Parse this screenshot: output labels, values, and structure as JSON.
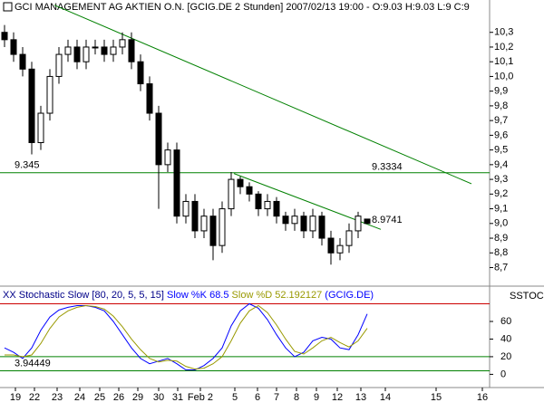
{
  "chart_data": [
    {
      "type": "candlestick",
      "title": "GCI MANAGEMENT AG AKTIEN O.N. [GCIG.DE  2 Stunden] 2007/02/13 19:00 - O:9.03 H:9.03 L:9 C:9",
      "x": [
        1,
        3,
        5,
        7,
        9,
        11,
        13,
        15,
        17,
        19,
        21,
        23,
        25,
        27,
        29,
        31,
        33,
        35,
        37,
        39,
        41,
        43,
        45,
        47,
        49,
        51,
        53,
        55,
        57,
        59,
        61,
        63,
        65,
        67,
        69,
        71,
        73,
        75,
        77,
        79,
        81
      ],
      "open": [
        10.3,
        10.25,
        10.15,
        10.05,
        9.55,
        9.75,
        10.0,
        10.15,
        10.2,
        10.1,
        10.2,
        10.2,
        10.15,
        10.2,
        10.25,
        10.1,
        9.95,
        9.75,
        9.4,
        9.5,
        9.05,
        9.15,
        8.95,
        9.05,
        8.85,
        9.1,
        9.3,
        9.25,
        9.2,
        9.1,
        9.15,
        9.05,
        9.0,
        9.05,
        8.95,
        9.05,
        8.9,
        8.8,
        8.85,
        8.95,
        9.03
      ],
      "high": [
        10.35,
        10.3,
        10.2,
        10.1,
        9.8,
        10.05,
        10.2,
        10.25,
        10.25,
        10.25,
        10.25,
        10.25,
        10.25,
        10.3,
        10.3,
        10.15,
        10.0,
        9.8,
        9.55,
        9.55,
        9.2,
        9.2,
        9.1,
        9.1,
        9.15,
        9.35,
        9.32,
        9.28,
        9.22,
        9.2,
        9.18,
        9.08,
        9.1,
        9.08,
        9.1,
        9.08,
        8.95,
        8.9,
        9.0,
        9.08,
        9.03
      ],
      "low": [
        10.2,
        10.1,
        10.0,
        9.47,
        9.5,
        9.7,
        9.95,
        10.1,
        10.05,
        10.05,
        10.15,
        10.1,
        10.1,
        10.15,
        10.05,
        9.9,
        9.7,
        9.1,
        9.35,
        9.0,
        9.0,
        8.9,
        8.9,
        8.75,
        8.8,
        9.05,
        9.2,
        9.15,
        9.05,
        9.05,
        9.0,
        8.95,
        8.95,
        8.9,
        8.9,
        8.85,
        8.72,
        8.75,
        8.8,
        8.9,
        9.0
      ],
      "close": [
        10.25,
        10.15,
        10.05,
        9.55,
        9.75,
        10.0,
        10.15,
        10.2,
        10.1,
        10.2,
        10.2,
        10.15,
        10.2,
        10.25,
        10.1,
        9.95,
        9.75,
        9.4,
        9.5,
        9.05,
        9.15,
        8.95,
        9.05,
        8.85,
        9.1,
        9.3,
        9.25,
        9.2,
        9.1,
        9.15,
        9.05,
        9.0,
        9.05,
        8.95,
        9.05,
        8.9,
        8.8,
        8.85,
        8.95,
        9.05,
        9.0
      ],
      "xlim": [
        0,
        108
      ],
      "xticks": [
        {
          "value": 3.4,
          "label": "19"
        },
        {
          "value": 7.6,
          "label": "22"
        },
        {
          "value": 12.6,
          "label": "23"
        },
        {
          "value": 17.6,
          "label": "24"
        },
        {
          "value": 22,
          "label": "25"
        },
        {
          "value": 26.2,
          "label": "26"
        },
        {
          "value": 30.4,
          "label": "29"
        },
        {
          "value": 35,
          "label": "30"
        },
        {
          "value": 39.2,
          "label": "31"
        },
        {
          "value": 44.2,
          "label": "Feb 2"
        },
        {
          "value": 51.8,
          "label": "5"
        },
        {
          "value": 56.8,
          "label": "6"
        },
        {
          "value": 61,
          "label": "7"
        },
        {
          "value": 65.4,
          "label": "8"
        },
        {
          "value": 69.8,
          "label": "9"
        },
        {
          "value": 74.4,
          "label": "12"
        },
        {
          "value": 79.6,
          "label": "13"
        },
        {
          "value": 85,
          "label": "14"
        },
        {
          "value": 96.2,
          "label": "15"
        },
        {
          "value": 106.4,
          "label": "16"
        }
      ],
      "ylim": [
        8.58,
        10.52
      ],
      "yticks": [
        {
          "value": 10.3,
          "label": "10,3"
        },
        {
          "value": 10.2,
          "label": "10,2"
        },
        {
          "value": 10.1,
          "label": "10,1"
        },
        {
          "value": 10.0,
          "label": "10,0"
        },
        {
          "value": 9.9,
          "label": "9,9"
        },
        {
          "value": 9.8,
          "label": "9,8"
        },
        {
          "value": 9.7,
          "label": "9,7"
        },
        {
          "value": 9.6,
          "label": "9,6"
        },
        {
          "value": 9.5,
          "label": "9,5"
        },
        {
          "value": 9.4,
          "label": "9,4"
        },
        {
          "value": 9.3,
          "label": "9,3"
        },
        {
          "value": 9.2,
          "label": "9,2"
        },
        {
          "value": 9.1,
          "label": "9,1"
        },
        {
          "value": 9.0,
          "label": "9,0"
        },
        {
          "value": 8.9,
          "label": "8,9"
        },
        {
          "value": 8.8,
          "label": "8,8"
        },
        {
          "value": 8.7,
          "label": "8,7"
        }
      ],
      "trendlines": [
        {
          "x": [
            12,
            104
          ],
          "y": [
            10.485,
            9.27
          ],
          "color": "#008000"
        },
        {
          "x": [
            51.6,
            84
          ],
          "y": [
            9.34,
            8.96
          ],
          "color": "#008000"
        }
      ],
      "hlines": [
        {
          "value": 9.345,
          "color": "#008000"
        }
      ],
      "annotations": [
        {
          "x": 82,
          "value": 9.3334
        },
        {
          "x": 82,
          "value": 8.9741
        }
      ]
    },
    {
      "type": "stochastic",
      "title": "XX Stochastic Slow [80, 20, 5, 5, 15]",
      "symbol": "(GCIG.DE)",
      "axis_label": "SSTOC",
      "x": [
        1,
        3,
        5,
        7,
        9,
        11,
        13,
        15,
        17,
        19,
        21,
        23,
        25,
        27,
        29,
        31,
        33,
        35,
        37,
        39,
        41,
        43,
        45,
        47,
        49,
        51,
        53,
        55,
        57,
        59,
        61,
        63,
        65,
        67,
        69,
        71,
        73,
        75,
        77,
        79,
        81
      ],
      "series": [
        {
          "name": "Slow %K 68.5",
          "color": "#0000ff",
          "values": [
            30,
            25,
            18,
            30,
            50,
            65,
            73,
            76,
            78,
            78,
            76,
            72,
            60,
            45,
            30,
            18,
            12,
            15,
            18,
            12,
            5,
            5,
            10,
            18,
            30,
            55,
            72,
            80,
            75,
            62,
            45,
            30,
            20,
            25,
            38,
            42,
            40,
            30,
            28,
            45,
            68.5
          ]
        },
        {
          "name": "Slow %D 52.192127",
          "color": "#999900",
          "values": [
            22,
            22,
            20,
            22,
            35,
            52,
            65,
            72,
            76,
            78,
            77,
            74,
            66,
            54,
            40,
            28,
            18,
            14,
            16,
            15,
            9,
            6,
            7,
            12,
            20,
            38,
            58,
            72,
            78,
            70,
            56,
            40,
            26,
            23,
            30,
            38,
            42,
            36,
            31,
            38,
            52.192127
          ]
        }
      ],
      "ylim": [
        -15,
        98
      ],
      "yticks": [
        0,
        20,
        40,
        60
      ],
      "levels": [
        {
          "value": 80,
          "color": "#cc0000"
        },
        {
          "value": 20,
          "color": "#008000"
        },
        {
          "value": 3.94449,
          "color": "#008000"
        }
      ]
    }
  ]
}
